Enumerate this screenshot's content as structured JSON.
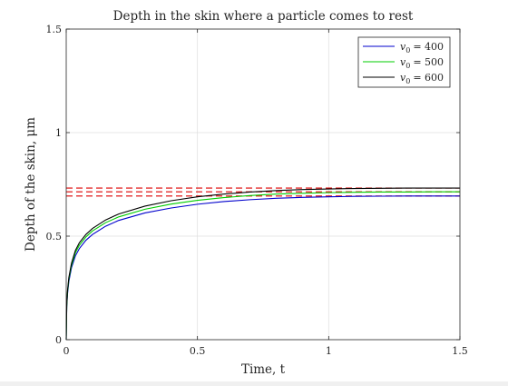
{
  "chart_data": {
    "type": "line",
    "title": "Depth in the skin where a particle comes to rest",
    "xlabel": "Time, t",
    "ylabel": "Depth of the skin, μm",
    "xlim": [
      0,
      1.5
    ],
    "ylim": [
      0,
      1.5
    ],
    "xticks": [
      0,
      0.5,
      1,
      1.5
    ],
    "xtick_labels": [
      "0",
      "0.5",
      "1",
      "1.5"
    ],
    "yticks": [
      0,
      0.5,
      1,
      1.5
    ],
    "ytick_labels": [
      "0",
      "0.5",
      "1",
      "1.5"
    ],
    "grid": true,
    "legend_position": "top-right",
    "series": [
      {
        "name": "v0 = 400",
        "legend_sub": "0",
        "legend_value": "= 400",
        "color": "#0000cc",
        "x": [
          0,
          0.002,
          0.005,
          0.01,
          0.02,
          0.035,
          0.05,
          0.075,
          0.1,
          0.15,
          0.2,
          0.3,
          0.4,
          0.5,
          0.6,
          0.7,
          0.8,
          0.9,
          1.0,
          1.1,
          1.2,
          1.3,
          1.4,
          1.5
        ],
        "y": [
          0,
          0.157,
          0.222,
          0.281,
          0.347,
          0.405,
          0.44,
          0.48,
          0.508,
          0.548,
          0.576,
          0.612,
          0.636,
          0.654,
          0.667,
          0.676,
          0.683,
          0.687,
          0.69,
          0.692,
          0.693,
          0.694,
          0.694,
          0.694
        ]
      },
      {
        "name": "v0 = 500",
        "legend_sub": "0",
        "legend_value": "= 500",
        "color": "#00cc00",
        "x": [
          0,
          0.002,
          0.005,
          0.01,
          0.02,
          0.035,
          0.05,
          0.075,
          0.1,
          0.15,
          0.2,
          0.3,
          0.4,
          0.5,
          0.6,
          0.7,
          0.8,
          0.9,
          1.0,
          1.1,
          1.2,
          1.3,
          1.4,
          1.5
        ],
        "y": [
          0,
          0.163,
          0.231,
          0.292,
          0.359,
          0.42,
          0.456,
          0.496,
          0.525,
          0.565,
          0.593,
          0.63,
          0.655,
          0.673,
          0.686,
          0.696,
          0.703,
          0.707,
          0.71,
          0.712,
          0.713,
          0.713,
          0.714,
          0.714
        ]
      },
      {
        "name": "v0 = 600",
        "legend_sub": "0",
        "legend_value": "= 600",
        "color": "#000000",
        "x": [
          0,
          0.002,
          0.005,
          0.01,
          0.02,
          0.035,
          0.05,
          0.075,
          0.1,
          0.15,
          0.2,
          0.3,
          0.4,
          0.5,
          0.6,
          0.7,
          0.8,
          0.9,
          1.0,
          1.1,
          1.2,
          1.3,
          1.4,
          1.5
        ],
        "y": [
          0,
          0.168,
          0.238,
          0.3,
          0.369,
          0.431,
          0.468,
          0.508,
          0.537,
          0.578,
          0.607,
          0.645,
          0.671,
          0.69,
          0.703,
          0.713,
          0.72,
          0.725,
          0.728,
          0.73,
          0.731,
          0.732,
          0.732,
          0.732
        ]
      }
    ],
    "reference_lines": {
      "color": "#dd0000",
      "style": "dashed",
      "y": [
        0.694,
        0.714,
        0.732
      ]
    }
  }
}
